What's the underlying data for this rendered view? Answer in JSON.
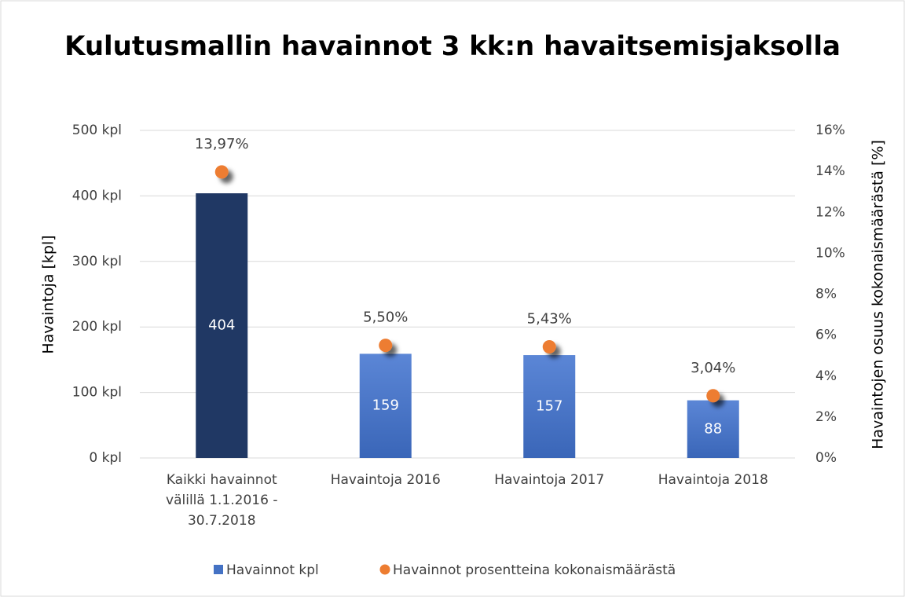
{
  "chart_data": {
    "type": "bar",
    "title": "Kulutusmallin havainnot 3 kk:n havaitsemisjaksolla",
    "ylabel": "Havaintoja [kpl]",
    "y2label": "Havaintojen osuus  kokonaismäärästä [%]",
    "categories": [
      "Kaikki havainnot välillä 1.1.2016 - 30.7.2018",
      "Havaintoja 2016",
      "Havaintoja 2017",
      "Havaintoja 2018"
    ],
    "ylim": [
      0,
      500
    ],
    "yticks": [
      {
        "value": 0,
        "label": "0 kpl"
      },
      {
        "value": 100,
        "label": "100 kpl"
      },
      {
        "value": 200,
        "label": "200 kpl"
      },
      {
        "value": 300,
        "label": "300 kpl"
      },
      {
        "value": 400,
        "label": "400 kpl"
      },
      {
        "value": 500,
        "label": "500 kpl"
      }
    ],
    "y2lim": [
      0,
      16
    ],
    "y2ticks": [
      {
        "value": 0,
        "label": "0%"
      },
      {
        "value": 2,
        "label": "2%"
      },
      {
        "value": 4,
        "label": "4%"
      },
      {
        "value": 6,
        "label": "6%"
      },
      {
        "value": 8,
        "label": "8%"
      },
      {
        "value": 10,
        "label": "10%"
      },
      {
        "value": 12,
        "label": "12%"
      },
      {
        "value": 14,
        "label": "14%"
      },
      {
        "value": 16,
        "label": "16%"
      }
    ],
    "grid": true,
    "legend": "bottom",
    "series": [
      {
        "name": "Havainnot kpl",
        "type": "bar",
        "color": "#4472c4",
        "colors": [
          "#203864",
          "#4472c4",
          "#4472c4",
          "#4472c4"
        ],
        "values": [
          404,
          159,
          157,
          88
        ]
      },
      {
        "name": "Havainnot prosentteina kokonaismäärästä",
        "type": "scatter",
        "axis": "y2",
        "color": "#ed7d31",
        "values": [
          13.97,
          5.5,
          5.43,
          3.04
        ],
        "value_labels": [
          "13,97%",
          "5,50%",
          "5,43%",
          "3,04%"
        ]
      }
    ]
  }
}
